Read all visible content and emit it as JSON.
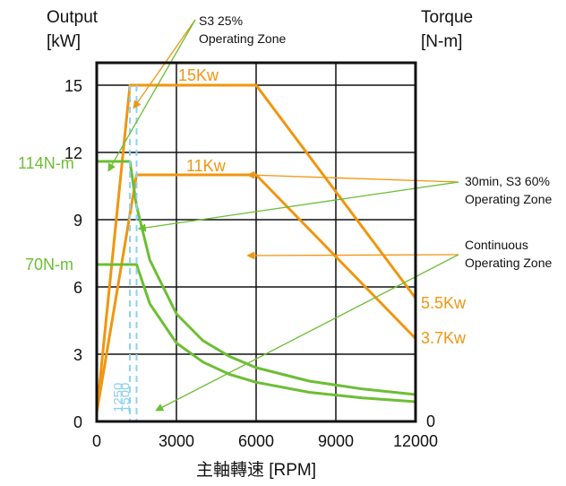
{
  "chart_data": {
    "type": "line",
    "title": "",
    "xlabel": "主軸轉速 [RPM]",
    "ylabel_left": [
      "Output",
      "[kW]"
    ],
    "ylabel_right": [
      "Torque",
      "[N-m]"
    ],
    "xlim": [
      0,
      12000
    ],
    "ylim": [
      0,
      16
    ],
    "x_ticks": [
      0,
      3000,
      6000,
      9000,
      12000
    ],
    "y_ticks": [
      0,
      3,
      6,
      9,
      12,
      15
    ],
    "grid": true,
    "colors": {
      "s3_25": "#f0960f",
      "s3_60": "#f0960f",
      "continuous": "#6cbe34",
      "speed_marker": "#8fd0f0",
      "frame": "#111111"
    },
    "series": [
      {
        "name": "S3 25% Operating Zone",
        "kind": "power",
        "color": "#f0960f",
        "points": [
          [
            0,
            0.4
          ],
          [
            1250,
            15
          ],
          [
            6000,
            15
          ],
          [
            12000,
            5.5
          ]
        ],
        "label": "15Kw",
        "end_label": "5.5Kw"
      },
      {
        "name": "30min, S3 60% Operating Zone",
        "kind": "power",
        "color": "#f0960f",
        "points": [
          [
            0,
            0.4
          ],
          [
            1500,
            11
          ],
          [
            6000,
            11
          ],
          [
            12000,
            3.7
          ]
        ],
        "label": "11Kw",
        "end_label": "3.7Kw"
      },
      {
        "name": "",
        "kind": "torque",
        "color": "#6cbe34",
        "points": [
          [
            0,
            11.6
          ],
          [
            1250,
            11.6
          ],
          [
            1500,
            9.6
          ],
          [
            2000,
            7.2
          ],
          [
            3000,
            4.8
          ],
          [
            4000,
            3.6
          ],
          [
            5000,
            2.9
          ],
          [
            6000,
            2.4
          ],
          [
            8000,
            1.8
          ],
          [
            10000,
            1.45
          ],
          [
            12000,
            1.2
          ]
        ],
        "label": "114N-m"
      },
      {
        "name": "",
        "kind": "torque",
        "color": "#6cbe34",
        "points": [
          [
            0,
            7.0
          ],
          [
            1500,
            7.0
          ],
          [
            2000,
            5.25
          ],
          [
            3000,
            3.5
          ],
          [
            4000,
            2.65
          ],
          [
            5000,
            2.1
          ],
          [
            6000,
            1.75
          ],
          [
            8000,
            1.3
          ],
          [
            10000,
            1.05
          ],
          [
            12000,
            0.88
          ]
        ],
        "label": "70N-m"
      }
    ],
    "speed_markers": [
      {
        "x": 1250,
        "label": "1250"
      },
      {
        "x": 1500,
        "label": "1500"
      }
    ],
    "torque_axis_zero": "0",
    "annotations": [
      {
        "id": "s3_25",
        "lines": [
          "S3 25%",
          "Operating Zone"
        ]
      },
      {
        "id": "s3_60",
        "lines": [
          "30min, S3 60%",
          "Operating Zone"
        ]
      },
      {
        "id": "continuous",
        "lines": [
          "Continuous",
          "Operating Zone"
        ]
      }
    ]
  }
}
